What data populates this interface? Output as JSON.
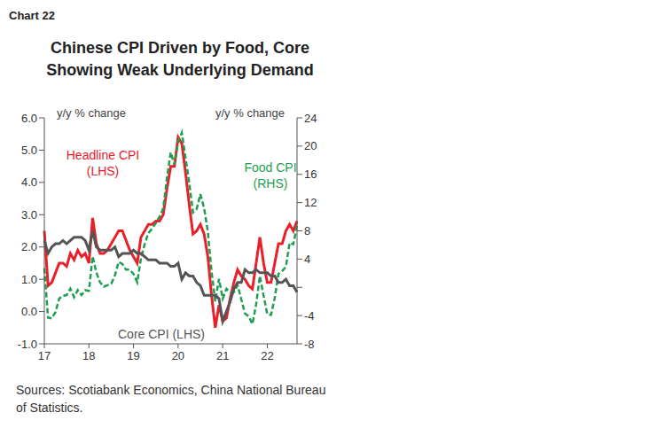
{
  "chart_data": {
    "type": "line",
    "chart_label": "Chart 22",
    "title": "Chinese CPI Driven by Food, Core Showing Weak Underlying Demand",
    "ylabel": "y/y % change",
    "y2label": "y/y % change",
    "source": "Sources: Scotiabank Economics, China National Bureau of Statistics.",
    "grid": false,
    "categories": [
      "17",
      null,
      null,
      null,
      null,
      null,
      null,
      null,
      null,
      null,
      null,
      null,
      "18",
      null,
      null,
      null,
      null,
      null,
      null,
      null,
      null,
      null,
      null,
      null,
      "19",
      null,
      null,
      null,
      null,
      null,
      null,
      null,
      null,
      null,
      null,
      null,
      "20",
      null,
      null,
      null,
      null,
      null,
      null,
      null,
      null,
      null,
      null,
      null,
      "21",
      null,
      null,
      null,
      null,
      null,
      null,
      null,
      null,
      null,
      null,
      null,
      "22",
      null,
      null,
      null,
      null,
      null,
      null,
      null,
      null
    ],
    "ylim": [
      -1,
      6
    ],
    "yticks": [
      {
        "value": -1,
        "label": "-1.0"
      },
      {
        "value": 0,
        "label": "0.0"
      },
      {
        "value": 1,
        "label": "1.0"
      },
      {
        "value": 2,
        "label": "2.0"
      },
      {
        "value": 3,
        "label": "3.0"
      },
      {
        "value": 4,
        "label": "4.0"
      },
      {
        "value": 5,
        "label": "5.0"
      },
      {
        "value": 6,
        "label": "6.0"
      }
    ],
    "y2lim": [
      -8,
      24
    ],
    "y2ticks": [
      -8,
      -4,
      0,
      4,
      8,
      12,
      16,
      20,
      24
    ],
    "series": [
      {
        "name": "Headline CPI (LHS)",
        "color": "#e8202a",
        "line_style": "solid",
        "axis": "y",
        "values": [
          2.5,
          0.8,
          0.9,
          1.2,
          1.5,
          1.5,
          1.4,
          1.8,
          1.6,
          1.9,
          1.7,
          1.8,
          1.5,
          2.9,
          2.1,
          1.8,
          1.8,
          1.9,
          2.1,
          2.3,
          2.5,
          2.5,
          2.2,
          1.9,
          1.7,
          1.5,
          2.3,
          2.5,
          2.7,
          2.7,
          2.8,
          2.8,
          3.0,
          3.8,
          4.5,
          4.5,
          5.4,
          5.2,
          4.3,
          3.3,
          2.4,
          2.5,
          2.7,
          2.4,
          1.7,
          0.5,
          -0.5,
          0.2,
          -0.3,
          -0.2,
          0.4,
          0.9,
          1.3,
          1.1,
          1.0,
          0.8,
          0.7,
          1.5,
          2.3,
          1.5,
          0.9,
          0.9,
          1.5,
          2.1,
          2.1,
          2.5,
          2.7,
          2.5,
          2.8
        ]
      },
      {
        "name": "Food CPI (RHS)",
        "color": "#1e9e52",
        "line_style": "dashed",
        "axis": "y2",
        "values": [
          2.7,
          -4.3,
          -4.4,
          -3.5,
          -1.6,
          -1.2,
          -1.1,
          -0.2,
          -1.4,
          -0.4,
          -1.1,
          -0.4,
          -0.5,
          4.4,
          2.1,
          0.7,
          0.1,
          0.3,
          0.5,
          1.7,
          3.6,
          3.3,
          2.5,
          2.5,
          1.9,
          0.7,
          4.1,
          6.1,
          7.7,
          8.3,
          9.1,
          10.0,
          11.2,
          15.5,
          19.1,
          17.4,
          20.6,
          21.9,
          18.3,
          14.8,
          10.6,
          11.1,
          13.2,
          11.2,
          7.9,
          2.2,
          -2.0,
          1.2,
          -1.6,
          -0.2,
          -0.7,
          -0.7,
          0.3,
          -1.7,
          -3.7,
          -4.1,
          -5.2,
          -2.4,
          1.6,
          -1.2,
          -3.8,
          -3.9,
          -1.5,
          1.9,
          2.3,
          2.9,
          6.3,
          6.1,
          8.8
        ]
      },
      {
        "name": "Core CPI (LHS)",
        "color": "#555555",
        "line_style": "solid",
        "axis": "y",
        "values": [
          2.2,
          1.8,
          2.0,
          2.1,
          2.1,
          2.2,
          2.1,
          2.2,
          2.3,
          2.3,
          2.3,
          2.2,
          1.9,
          2.5,
          2.0,
          1.9,
          1.9,
          1.9,
          1.9,
          2.0,
          1.7,
          1.8,
          1.8,
          1.8,
          1.9,
          1.8,
          1.8,
          1.7,
          1.6,
          1.6,
          1.6,
          1.5,
          1.5,
          1.5,
          1.4,
          1.4,
          1.5,
          1.0,
          1.2,
          1.1,
          1.1,
          0.9,
          0.8,
          0.5,
          0.5,
          0.5,
          0.5,
          0.4,
          -0.3,
          0.0,
          0.3,
          0.7,
          0.9,
          0.9,
          1.3,
          1.2,
          1.2,
          1.3,
          1.2,
          1.2,
          1.2,
          1.1,
          1.1,
          0.9,
          0.9,
          1.0,
          0.8,
          0.8,
          0.6
        ]
      }
    ]
  }
}
